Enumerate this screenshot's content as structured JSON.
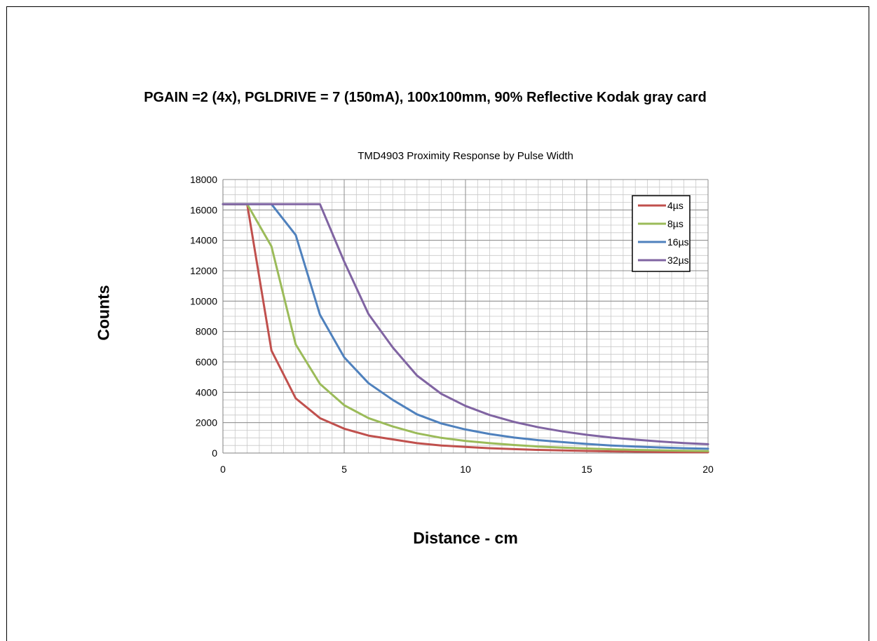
{
  "heading": "PGAIN =2 (4x), PGLDRIVE = 7 (150mA), 100x100mm, 90% Reflective Kodak gray card",
  "chart_data": {
    "type": "line",
    "title": "TMD4903 Proximity Response by Pulse Width",
    "xlabel": "Distance - cm",
    "ylabel": "Counts",
    "xlim": [
      0,
      20
    ],
    "ylim": [
      0,
      18000
    ],
    "xticks": [
      0,
      5,
      10,
      15,
      20
    ],
    "yticks": [
      0,
      2000,
      4000,
      6000,
      8000,
      10000,
      12000,
      14000,
      16000,
      18000
    ],
    "grid": true,
    "legend_position": "top-right",
    "x": [
      0,
      1,
      2,
      3,
      4,
      5,
      6,
      7,
      8,
      9,
      10,
      11,
      12,
      13,
      14,
      15,
      16,
      17,
      18,
      19,
      20
    ],
    "series": [
      {
        "name": "4µs",
        "color": "#c0504d",
        "values": [
          16380,
          16380,
          6750,
          3600,
          2300,
          1600,
          1150,
          900,
          650,
          500,
          400,
          320,
          260,
          210,
          170,
          140,
          110,
          90,
          70,
          60,
          50
        ]
      },
      {
        "name": "8µs",
        "color": "#9bbb59",
        "values": [
          16380,
          16380,
          13600,
          7150,
          4550,
          3150,
          2300,
          1750,
          1300,
          1000,
          800,
          650,
          530,
          430,
          360,
          300,
          250,
          210,
          180,
          150,
          130
        ]
      },
      {
        "name": "16µs",
        "color": "#4f81bd",
        "values": [
          16380,
          16380,
          16380,
          14350,
          9100,
          6300,
          4600,
          3500,
          2550,
          1950,
          1550,
          1250,
          1020,
          850,
          720,
          600,
          500,
          430,
          370,
          320,
          280
        ]
      },
      {
        "name": "32µs",
        "color": "#8064a2",
        "values": [
          16380,
          16380,
          16380,
          16380,
          16380,
          12600,
          9150,
          6950,
          5100,
          3900,
          3100,
          2500,
          2050,
          1700,
          1420,
          1200,
          1020,
          880,
          760,
          660,
          580
        ]
      }
    ]
  }
}
